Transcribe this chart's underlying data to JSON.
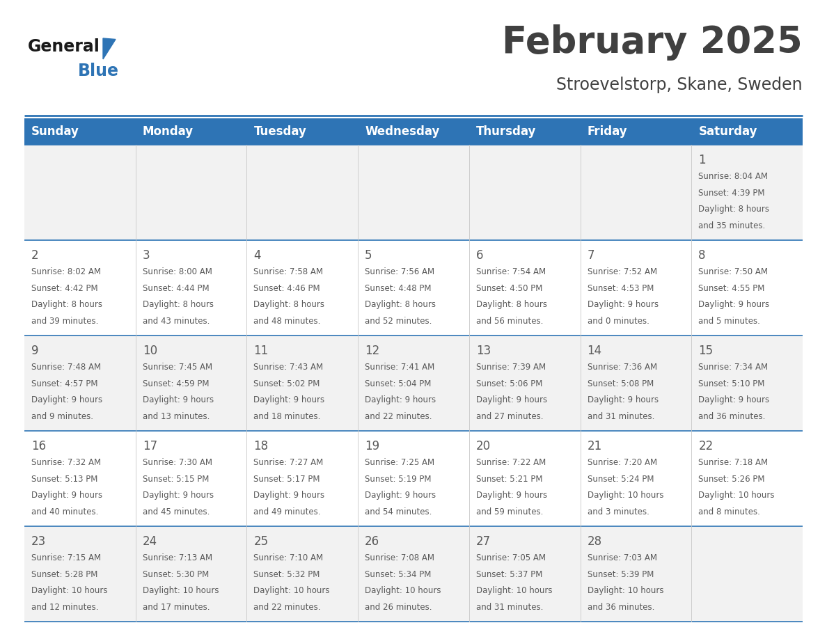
{
  "title": "February 2025",
  "subtitle": "Stroevelstorp, Skane, Sweden",
  "header_color": "#2E74B5",
  "header_text_color": "#FFFFFF",
  "day_names": [
    "Sunday",
    "Monday",
    "Tuesday",
    "Wednesday",
    "Thursday",
    "Friday",
    "Saturday"
  ],
  "bg_color": "#FFFFFF",
  "row_colors": [
    "#F2F2F2",
    "#FFFFFF",
    "#F2F2F2",
    "#FFFFFF",
    "#F2F2F2"
  ],
  "separator_color": "#2E74B5",
  "text_color": "#595959",
  "title_color": "#404040",
  "logo_general_color": "#1a1a1a",
  "logo_blue_color": "#2E74B5",
  "logo_triangle_color": "#2E74B5",
  "days": [
    {
      "day": 1,
      "col": 6,
      "row": 0,
      "sunrise": "8:04 AM",
      "sunset": "4:39 PM",
      "daylight_h": "8 hours",
      "daylight_m": "and 35 minutes."
    },
    {
      "day": 2,
      "col": 0,
      "row": 1,
      "sunrise": "8:02 AM",
      "sunset": "4:42 PM",
      "daylight_h": "8 hours",
      "daylight_m": "and 39 minutes."
    },
    {
      "day": 3,
      "col": 1,
      "row": 1,
      "sunrise": "8:00 AM",
      "sunset": "4:44 PM",
      "daylight_h": "8 hours",
      "daylight_m": "and 43 minutes."
    },
    {
      "day": 4,
      "col": 2,
      "row": 1,
      "sunrise": "7:58 AM",
      "sunset": "4:46 PM",
      "daylight_h": "8 hours",
      "daylight_m": "and 48 minutes."
    },
    {
      "day": 5,
      "col": 3,
      "row": 1,
      "sunrise": "7:56 AM",
      "sunset": "4:48 PM",
      "daylight_h": "8 hours",
      "daylight_m": "and 52 minutes."
    },
    {
      "day": 6,
      "col": 4,
      "row": 1,
      "sunrise": "7:54 AM",
      "sunset": "4:50 PM",
      "daylight_h": "8 hours",
      "daylight_m": "and 56 minutes."
    },
    {
      "day": 7,
      "col": 5,
      "row": 1,
      "sunrise": "7:52 AM",
      "sunset": "4:53 PM",
      "daylight_h": "9 hours",
      "daylight_m": "and 0 minutes."
    },
    {
      "day": 8,
      "col": 6,
      "row": 1,
      "sunrise": "7:50 AM",
      "sunset": "4:55 PM",
      "daylight_h": "9 hours",
      "daylight_m": "and 5 minutes."
    },
    {
      "day": 9,
      "col": 0,
      "row": 2,
      "sunrise": "7:48 AM",
      "sunset": "4:57 PM",
      "daylight_h": "9 hours",
      "daylight_m": "and 9 minutes."
    },
    {
      "day": 10,
      "col": 1,
      "row": 2,
      "sunrise": "7:45 AM",
      "sunset": "4:59 PM",
      "daylight_h": "9 hours",
      "daylight_m": "and 13 minutes."
    },
    {
      "day": 11,
      "col": 2,
      "row": 2,
      "sunrise": "7:43 AM",
      "sunset": "5:02 PM",
      "daylight_h": "9 hours",
      "daylight_m": "and 18 minutes."
    },
    {
      "day": 12,
      "col": 3,
      "row": 2,
      "sunrise": "7:41 AM",
      "sunset": "5:04 PM",
      "daylight_h": "9 hours",
      "daylight_m": "and 22 minutes."
    },
    {
      "day": 13,
      "col": 4,
      "row": 2,
      "sunrise": "7:39 AM",
      "sunset": "5:06 PM",
      "daylight_h": "9 hours",
      "daylight_m": "and 27 minutes."
    },
    {
      "day": 14,
      "col": 5,
      "row": 2,
      "sunrise": "7:36 AM",
      "sunset": "5:08 PM",
      "daylight_h": "9 hours",
      "daylight_m": "and 31 minutes."
    },
    {
      "day": 15,
      "col": 6,
      "row": 2,
      "sunrise": "7:34 AM",
      "sunset": "5:10 PM",
      "daylight_h": "9 hours",
      "daylight_m": "and 36 minutes."
    },
    {
      "day": 16,
      "col": 0,
      "row": 3,
      "sunrise": "7:32 AM",
      "sunset": "5:13 PM",
      "daylight_h": "9 hours",
      "daylight_m": "and 40 minutes."
    },
    {
      "day": 17,
      "col": 1,
      "row": 3,
      "sunrise": "7:30 AM",
      "sunset": "5:15 PM",
      "daylight_h": "9 hours",
      "daylight_m": "and 45 minutes."
    },
    {
      "day": 18,
      "col": 2,
      "row": 3,
      "sunrise": "7:27 AM",
      "sunset": "5:17 PM",
      "daylight_h": "9 hours",
      "daylight_m": "and 49 minutes."
    },
    {
      "day": 19,
      "col": 3,
      "row": 3,
      "sunrise": "7:25 AM",
      "sunset": "5:19 PM",
      "daylight_h": "9 hours",
      "daylight_m": "and 54 minutes."
    },
    {
      "day": 20,
      "col": 4,
      "row": 3,
      "sunrise": "7:22 AM",
      "sunset": "5:21 PM",
      "daylight_h": "9 hours",
      "daylight_m": "and 59 minutes."
    },
    {
      "day": 21,
      "col": 5,
      "row": 3,
      "sunrise": "7:20 AM",
      "sunset": "5:24 PM",
      "daylight_h": "10 hours",
      "daylight_m": "and 3 minutes."
    },
    {
      "day": 22,
      "col": 6,
      "row": 3,
      "sunrise": "7:18 AM",
      "sunset": "5:26 PM",
      "daylight_h": "10 hours",
      "daylight_m": "and 8 minutes."
    },
    {
      "day": 23,
      "col": 0,
      "row": 4,
      "sunrise": "7:15 AM",
      "sunset": "5:28 PM",
      "daylight_h": "10 hours",
      "daylight_m": "and 12 minutes."
    },
    {
      "day": 24,
      "col": 1,
      "row": 4,
      "sunrise": "7:13 AM",
      "sunset": "5:30 PM",
      "daylight_h": "10 hours",
      "daylight_m": "and 17 minutes."
    },
    {
      "day": 25,
      "col": 2,
      "row": 4,
      "sunrise": "7:10 AM",
      "sunset": "5:32 PM",
      "daylight_h": "10 hours",
      "daylight_m": "and 22 minutes."
    },
    {
      "day": 26,
      "col": 3,
      "row": 4,
      "sunrise": "7:08 AM",
      "sunset": "5:34 PM",
      "daylight_h": "10 hours",
      "daylight_m": "and 26 minutes."
    },
    {
      "day": 27,
      "col": 4,
      "row": 4,
      "sunrise": "7:05 AM",
      "sunset": "5:37 PM",
      "daylight_h": "10 hours",
      "daylight_m": "and 31 minutes."
    },
    {
      "day": 28,
      "col": 5,
      "row": 4,
      "sunrise": "7:03 AM",
      "sunset": "5:39 PM",
      "daylight_h": "10 hours",
      "daylight_m": "and 36 minutes."
    }
  ]
}
